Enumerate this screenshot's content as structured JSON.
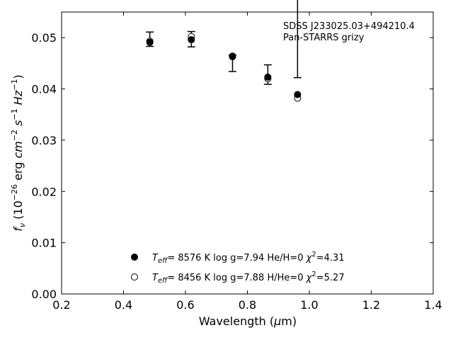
{
  "chart_data": {
    "type": "scatter",
    "annotation": {
      "line1": "SDSS J233025.03+494210.4",
      "line2": "Pan-STARRS grizy"
    },
    "xlabel": "Wavelength (μm)",
    "ylabel": "f_ν (10^-26 erg cm^-2 s^-1 Hz^-1)",
    "xlim": [
      0.2,
      1.4
    ],
    "ylim": [
      0.0,
      0.055
    ],
    "x_ticks": [
      0.2,
      0.4,
      0.6,
      0.8,
      1.0,
      1.2,
      1.4
    ],
    "x_tick_labels": [
      "0.2",
      "0.4",
      "0.6",
      "0.8",
      "1.0",
      "1.2",
      "1.4"
    ],
    "y_ticks": [
      0.0,
      0.01,
      0.02,
      0.03,
      0.04,
      0.05
    ],
    "y_tick_labels": [
      "0.00",
      "0.01",
      "0.02",
      "0.03",
      "0.04",
      "0.05"
    ],
    "grid": false,
    "observed": {
      "x": [
        0.485,
        0.619,
        0.752,
        0.866,
        0.962
      ],
      "y": [
        0.0497,
        0.0497,
        0.045,
        0.0428,
        0.0522
      ],
      "err": [
        0.0014,
        0.0015,
        0.0016,
        0.0019,
        0.01
      ]
    },
    "series": [
      {
        "name": "Teff= 8576 K log g=7.94 He/H=0 χ²=4.31",
        "marker": "filled-circle",
        "x": [
          0.485,
          0.619,
          0.752,
          0.866,
          0.962
        ],
        "y": [
          0.0491,
          0.0496,
          0.0463,
          0.0423,
          0.0389
        ]
      },
      {
        "name": "Teff= 8456 K log g=7.88 H/He=0 χ²=5.27",
        "marker": "open-circle",
        "x": [
          0.485,
          0.619,
          0.752,
          0.866,
          0.962
        ],
        "y": [
          0.0493,
          0.0502,
          0.0464,
          0.042,
          0.0382
        ]
      }
    ],
    "legend": [
      {
        "teff": "8576 K",
        "logg": "log g=7.94",
        "comp": "He/H=0",
        "chi": "=4.31",
        "marker": "filled"
      },
      {
        "teff": "8456 K",
        "logg": "log g=7.88",
        "comp": "H/He=0",
        "chi": "=5.27",
        "marker": "open"
      }
    ],
    "legend_position": "lower-center",
    "colors": {
      "marker": "#000000",
      "axes": "#000000"
    }
  }
}
